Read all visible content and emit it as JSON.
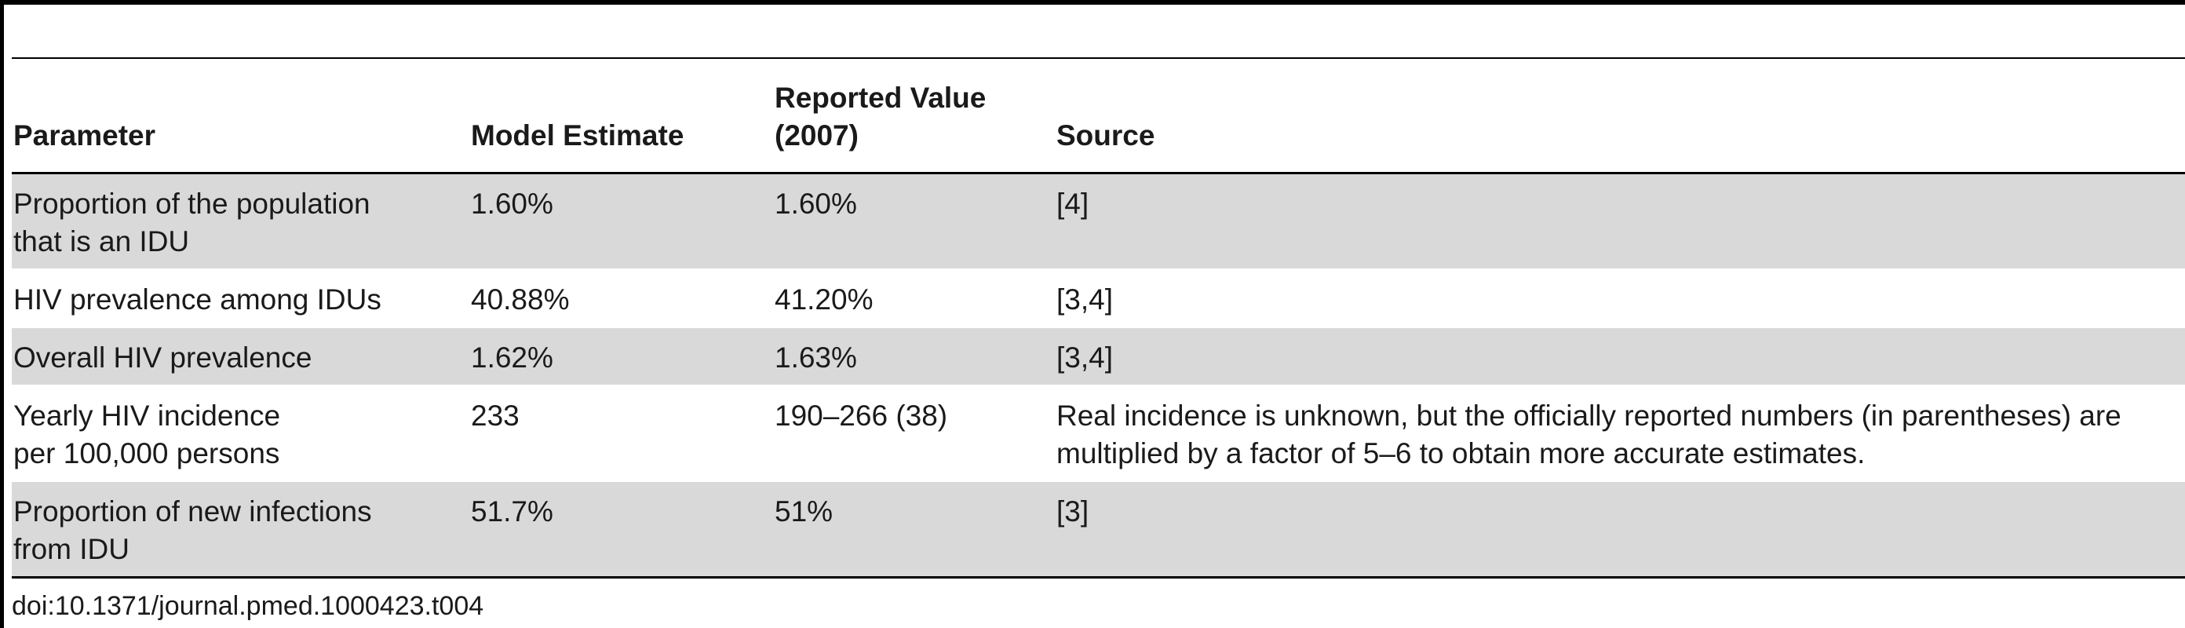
{
  "table": {
    "headers": [
      "Parameter",
      "Model Estimate",
      "Reported Value (2007)",
      "Source"
    ],
    "rows": [
      [
        "Proportion of the population that is an IDU",
        "1.60%",
        "1.60%",
        "[4]"
      ],
      [
        "HIV prevalence among IDUs",
        "40.88%",
        "41.20%",
        "[3,4]"
      ],
      [
        "Overall HIV prevalence",
        "1.62%",
        "1.63%",
        "[3,4]"
      ],
      [
        "Yearly HIV incidence per 100,000 persons",
        "233",
        "190–266 (38)",
        "Real incidence is unknown, but the officially reported numbers (in parentheses) are multiplied by a factor of 5–6 to obtain more accurate estimates."
      ],
      [
        "Proportion of new infections from IDU",
        "51.7%",
        "51%",
        "[3]"
      ]
    ]
  },
  "footer": {
    "doi": "doi:10.1371/journal.pmed.1000423.t004"
  }
}
